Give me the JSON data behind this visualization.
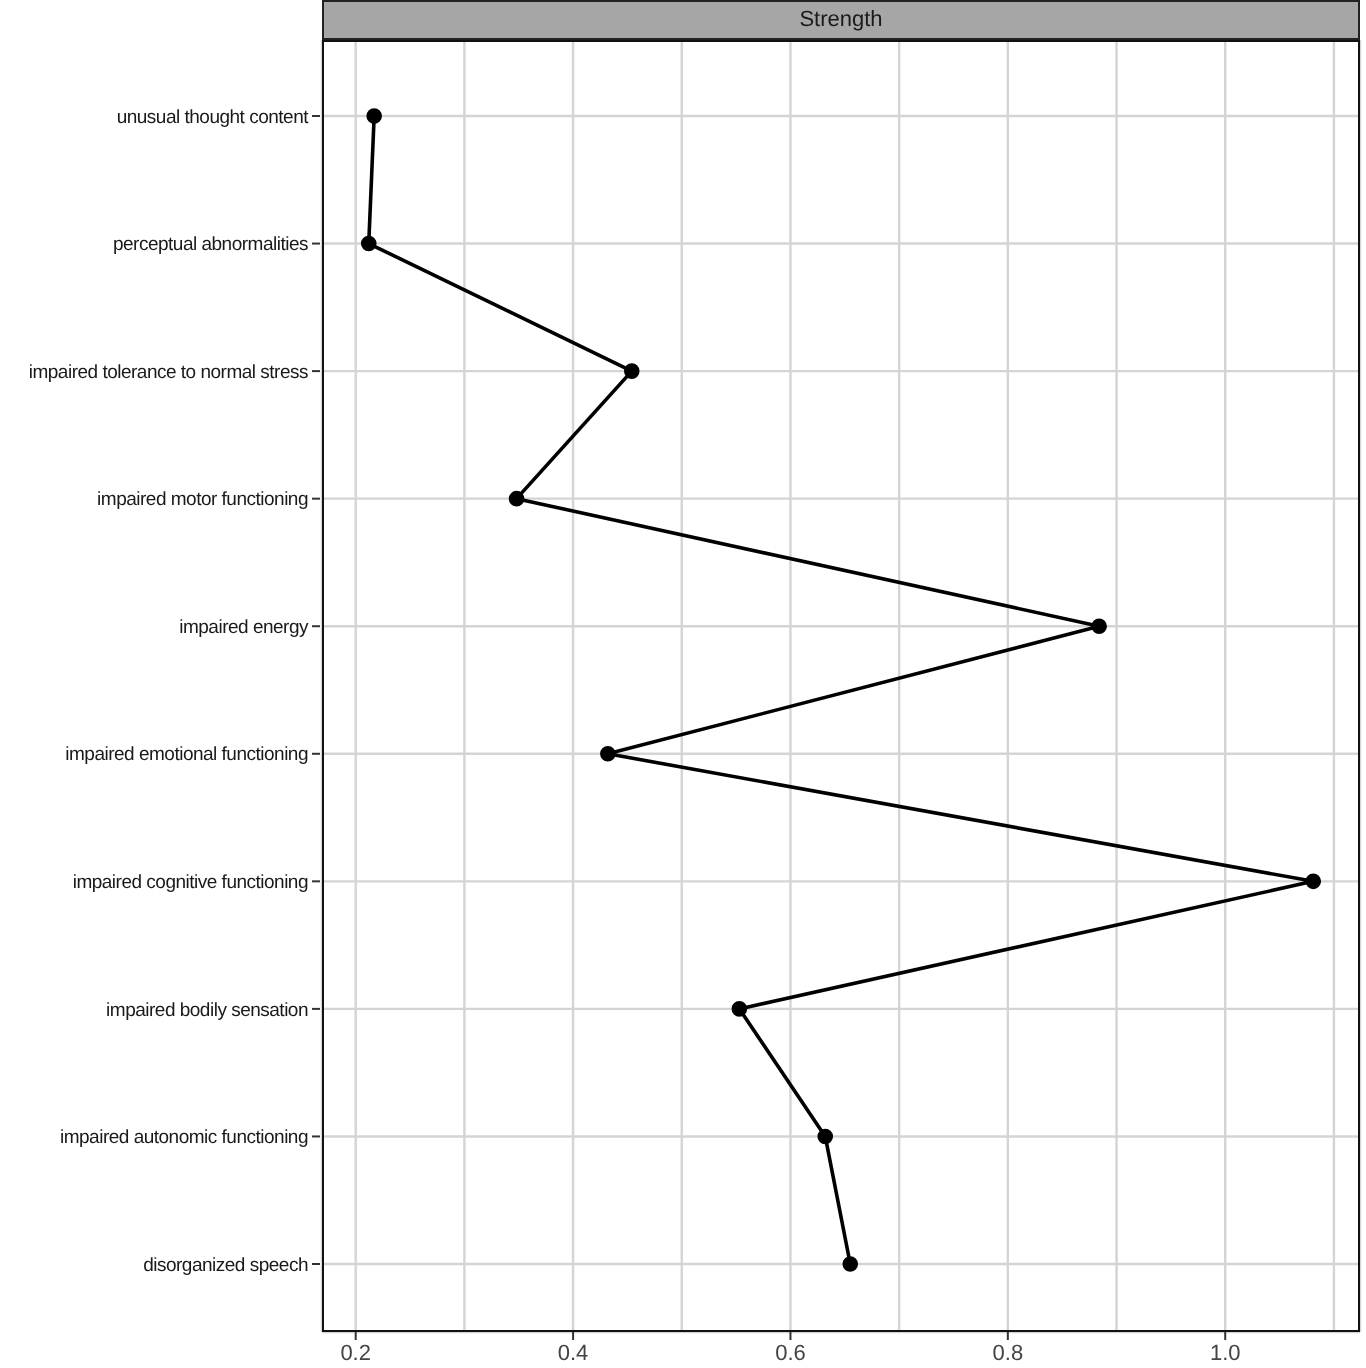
{
  "chart_data": {
    "type": "line",
    "title": "Strength",
    "orientation": "horizontal",
    "categories": [
      "unusual thought content",
      "perceptual abnormalities",
      "impaired tolerance to normal stress",
      "impaired motor functioning",
      "impaired energy",
      "impaired emotional functioning",
      "impaired cognitive functioning",
      "impaired bodily sensation",
      "impaired autonomic functioning",
      "disorganized speech"
    ],
    "series": [
      {
        "color": "#000000",
        "values": [
          0.217,
          0.212,
          0.454,
          0.348,
          0.884,
          0.432,
          1.081,
          0.553,
          0.632,
          0.655
        ]
      }
    ],
    "xlim": [
      0.169,
      1.124
    ],
    "xticks": [
      0.2,
      {
        "value": 0.3,
        "label": null
      },
      0.4,
      {
        "value": 0.5,
        "label": null
      },
      0.6,
      {
        "value": 0.7,
        "label": null
      },
      0.8,
      {
        "value": 0.9,
        "label": null
      },
      {
        "value": 1.0,
        "label": "1.0"
      },
      {
        "value": 1.1,
        "label": null
      }
    ],
    "grid": true,
    "marker": "circle",
    "line_style": "solid"
  }
}
